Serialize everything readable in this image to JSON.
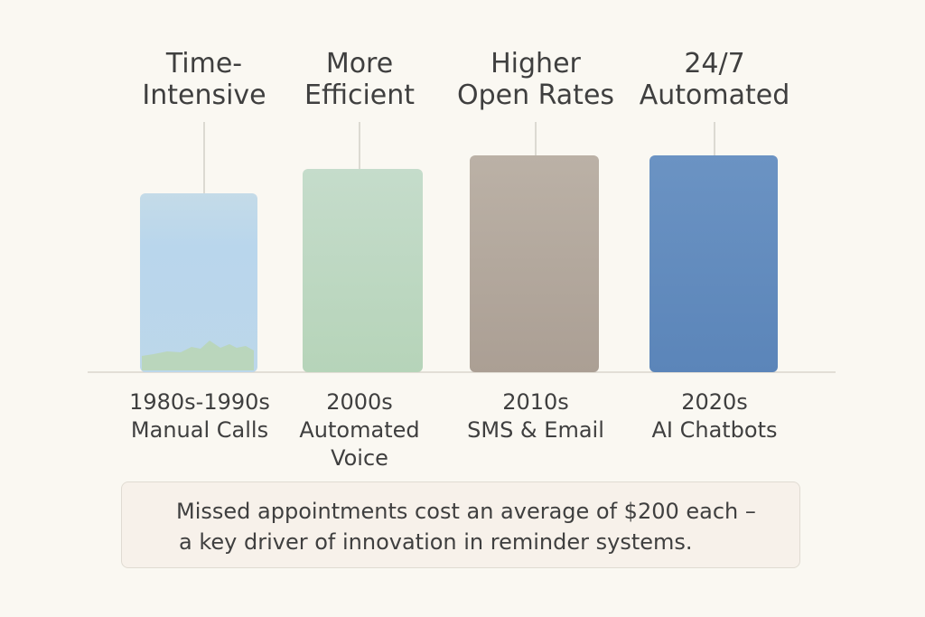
{
  "chart_data": {
    "type": "bar",
    "title": "",
    "categories": [
      {
        "era": "1980s-1990s",
        "method": [
          "Manual Calls"
        ],
        "benefit": [
          "Time-",
          "Intensive"
        ]
      },
      {
        "era": "2000s",
        "method": [
          "Automated",
          "Voice"
        ],
        "benefit": [
          "More",
          "Efficient"
        ]
      },
      {
        "era": "2010s",
        "method": [
          "SMS & Email"
        ],
        "benefit": [
          "Higher",
          "Open Rates"
        ]
      },
      {
        "era": "2020s",
        "method": [
          "AI Chatbots"
        ],
        "benefit": [
          "24/7",
          "Automated"
        ]
      }
    ],
    "values": [
      66,
      75,
      80,
      80
    ],
    "ylim": [
      0,
      100
    ],
    "xlabel": "",
    "ylabel": "",
    "grid": false,
    "colors": [
      "#b8d4ea",
      "#b8d7bd",
      "#b2a69a",
      "#5b86ba"
    ]
  },
  "callout": {
    "line1": "Missed appointments cost an average of $200 each –",
    "line2": "a key driver of innovation in reminder systems."
  }
}
